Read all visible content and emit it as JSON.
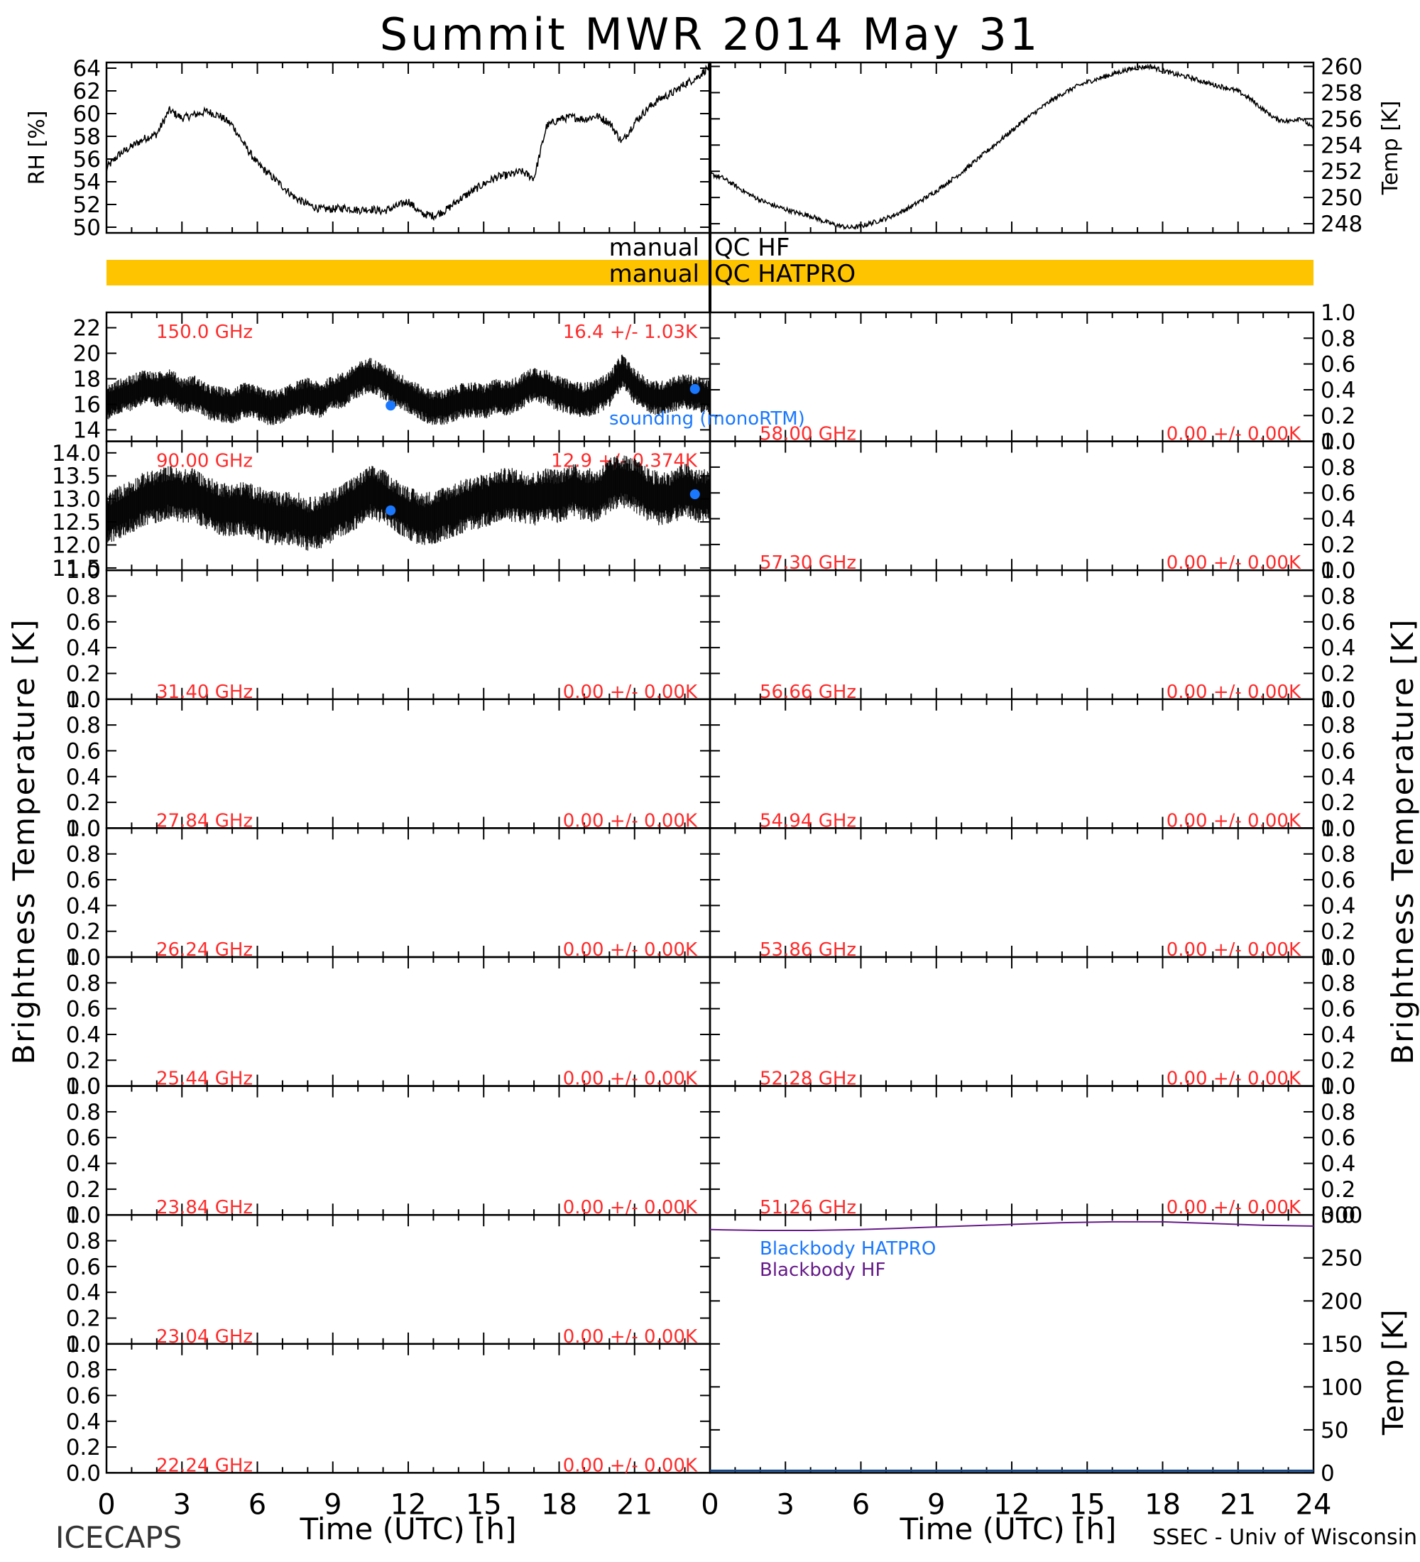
{
  "figure": {
    "title": "Summit MWR 2014 May 31",
    "footer_left": "ICECAPS",
    "footer_right": "SSEC - Univ of Wisconsin",
    "xlabel": "Time (UTC) [h]",
    "left_ylabel": "Brightness Temperature [K]",
    "right_ylabel": "Brightness Temperature [K]",
    "qc": {
      "hf_label": "manual",
      "hf_text": "QC HF",
      "hatpro_label": "manual",
      "hatpro_text": "QC HATPRO",
      "hatpro_color": "#ffc400"
    },
    "colors": {
      "stats": "#ff2a2a",
      "sounding": "#1a78ff",
      "blackbody_hatpro": "#1a78ff",
      "blackbody_hf": "#661a88"
    }
  },
  "chart_data": [
    {
      "id": "rh",
      "type": "line",
      "ylabel": "RH [%]",
      "ylim": [
        49.5,
        64.5
      ],
      "yticks": [
        50,
        52,
        54,
        56,
        58,
        60,
        62,
        64
      ],
      "x": [
        0,
        0.5,
        1,
        1.5,
        2,
        2.5,
        3,
        3.5,
        4,
        4.5,
        5,
        5.5,
        6,
        6.5,
        7,
        7.5,
        8,
        8.5,
        9,
        9.5,
        10,
        10.5,
        11,
        11.5,
        12,
        12.5,
        13,
        13.5,
        14,
        14.5,
        15,
        15.5,
        16,
        16.5,
        17,
        17.5,
        18,
        18.5,
        19,
        19.5,
        20,
        20.5,
        21,
        21.5,
        22,
        22.5,
        23,
        23.5,
        24
      ],
      "y": [
        55.2,
        56.4,
        57.1,
        57.8,
        58.2,
        60.3,
        59.6,
        59.9,
        60.2,
        59.8,
        59.0,
        57.2,
        55.6,
        54.6,
        53.6,
        52.6,
        52.0,
        51.6,
        51.6,
        51.7,
        51.5,
        51.6,
        51.4,
        51.8,
        52.3,
        51.2,
        51.0,
        51.5,
        52.4,
        53.1,
        53.8,
        54.4,
        54.6,
        54.9,
        54.3,
        58.9,
        59.5,
        59.7,
        59.5,
        59.8,
        59.2,
        57.5,
        59.2,
        60.4,
        61.3,
        61.8,
        62.6,
        63.2,
        64.2
      ]
    },
    {
      "id": "temp",
      "type": "line",
      "ylabel": "Temp [K]",
      "ylim": [
        247.3,
        260.3
      ],
      "yticks": [
        248,
        250,
        252,
        254,
        256,
        258,
        260
      ],
      "x": [
        0,
        0.5,
        1,
        1.5,
        2,
        2.5,
        3,
        3.5,
        4,
        4.5,
        5,
        5.5,
        6,
        6.5,
        7,
        7.5,
        8,
        8.5,
        9,
        9.5,
        10,
        10.5,
        11,
        11.5,
        12,
        12.5,
        13,
        13.5,
        14,
        14.5,
        15,
        15.5,
        16,
        16.5,
        17,
        17.5,
        18,
        18.5,
        19,
        19.5,
        20,
        20.5,
        21,
        21.5,
        22,
        22.5,
        23,
        23.5,
        24
      ],
      "y": [
        251.8,
        251.5,
        250.9,
        250.3,
        249.8,
        249.4,
        249.1,
        248.8,
        248.6,
        248.2,
        247.9,
        247.7,
        247.8,
        248.1,
        248.4,
        248.8,
        249.3,
        249.9,
        250.5,
        251.2,
        251.9,
        252.7,
        253.5,
        254.3,
        255.1,
        255.9,
        256.6,
        257.3,
        257.9,
        258.4,
        258.8,
        259.1,
        259.4,
        259.7,
        259.9,
        260.0,
        259.7,
        259.4,
        259.2,
        258.9,
        258.6,
        258.4,
        258.1,
        257.5,
        256.7,
        256.0,
        255.8,
        256.1,
        255.2
      ]
    },
    {
      "id": "tb-150",
      "type": "line",
      "freq_label": "150.0 GHz",
      "stats_label": "16.4 +/- 1.03K",
      "ylim": [
        13.1,
        23.2
      ],
      "yticks": [
        14,
        16,
        18,
        20,
        22
      ],
      "y_decimals": 0,
      "x": [
        0,
        0.5,
        1,
        1.5,
        2,
        2.5,
        3,
        3.5,
        4,
        4.5,
        5,
        5.5,
        6,
        6.5,
        7,
        7.5,
        8,
        8.5,
        9,
        9.5,
        10,
        10.5,
        11,
        11.5,
        12,
        12.5,
        13,
        13.5,
        14,
        14.5,
        15,
        15.5,
        16,
        16.5,
        17,
        17.5,
        18,
        18.5,
        19,
        19.5,
        20,
        20.5,
        21,
        21.5,
        22,
        22.5,
        23,
        23.5,
        24
      ],
      "y": [
        16.1,
        16.6,
        16.9,
        17.4,
        17.1,
        17.5,
        16.7,
        16.9,
        16.2,
        16.0,
        15.9,
        16.3,
        16.1,
        15.7,
        15.9,
        16.4,
        16.7,
        16.3,
        16.9,
        17.2,
        17.9,
        18.3,
        17.8,
        17.2,
        16.7,
        16.1,
        15.7,
        15.8,
        16.2,
        16.4,
        16.2,
        16.6,
        16.5,
        17.0,
        17.6,
        17.3,
        16.8,
        16.5,
        16.3,
        16.6,
        17.2,
        18.6,
        17.4,
        16.7,
        16.4,
        16.8,
        17.0,
        16.8,
        16.5
      ],
      "band": 1.0,
      "sounding": [
        [
          11.3,
          15.9
        ],
        [
          23.4,
          17.2
        ]
      ],
      "sounding_label": "sounding (monoRTM)"
    },
    {
      "id": "tb-90",
      "type": "line",
      "freq_label": "90.00 GHz",
      "stats_label": "12.9 +/- 0.374K",
      "ylim": [
        11.45,
        14.25
      ],
      "yticks": [
        11.5,
        12.0,
        12.5,
        13.0,
        13.5,
        14.0
      ],
      "y_decimals": 1,
      "x": [
        0,
        0.5,
        1,
        1.5,
        2,
        2.5,
        3,
        3.5,
        4,
        4.5,
        5,
        5.5,
        6,
        6.5,
        7,
        7.5,
        8,
        8.5,
        9,
        9.5,
        10,
        10.5,
        11,
        11.5,
        12,
        12.5,
        13,
        13.5,
        14,
        14.5,
        15,
        15.5,
        16,
        16.5,
        17,
        17.5,
        18,
        18.5,
        19,
        19.5,
        20,
        20.5,
        21,
        21.5,
        22,
        22.5,
        23,
        23.5,
        24
      ],
      "y": [
        12.55,
        12.7,
        12.85,
        13.0,
        13.05,
        13.15,
        13.05,
        13.1,
        12.9,
        12.8,
        12.75,
        12.8,
        12.7,
        12.6,
        12.55,
        12.6,
        12.45,
        12.5,
        12.65,
        12.8,
        12.95,
        13.15,
        13.05,
        12.85,
        12.7,
        12.55,
        12.6,
        12.7,
        12.8,
        12.9,
        12.95,
        13.05,
        13.1,
        13.05,
        13.0,
        13.1,
        13.05,
        13.2,
        13.1,
        13.05,
        13.3,
        13.4,
        13.3,
        13.1,
        13.0,
        13.05,
        13.2,
        13.05,
        13.1
      ],
      "band": 0.42,
      "sounding": [
        [
          11.3,
          12.75
        ],
        [
          23.4,
          13.1
        ]
      ]
    },
    {
      "id": "tb-31",
      "type": "line",
      "freq_label": "31.40 GHz",
      "stats_label": "0.00 +/- 0.00K",
      "ylim": [
        0,
        1
      ],
      "yticks": [
        0.0,
        0.2,
        0.4,
        0.6,
        0.8,
        1.0
      ],
      "y_decimals": 1
    },
    {
      "id": "tb-27",
      "type": "line",
      "freq_label": "27.84 GHz",
      "stats_label": "0.00 +/- 0.00K",
      "ylim": [
        0,
        1
      ],
      "yticks": [
        0.0,
        0.2,
        0.4,
        0.6,
        0.8,
        1.0
      ],
      "y_decimals": 1
    },
    {
      "id": "tb-26",
      "type": "line",
      "freq_label": "26.24 GHz",
      "stats_label": "0.00 +/- 0.00K",
      "ylim": [
        0,
        1
      ],
      "yticks": [
        0.0,
        0.2,
        0.4,
        0.6,
        0.8,
        1.0
      ],
      "y_decimals": 1
    },
    {
      "id": "tb-25",
      "type": "line",
      "freq_label": "25.44 GHz",
      "stats_label": "0.00 +/- 0.00K",
      "ylim": [
        0,
        1
      ],
      "yticks": [
        0.0,
        0.2,
        0.4,
        0.6,
        0.8,
        1.0
      ],
      "y_decimals": 1
    },
    {
      "id": "tb-23-84",
      "type": "line",
      "freq_label": "23.84 GHz",
      "stats_label": "0.00 +/- 0.00K",
      "ylim": [
        0,
        1
      ],
      "yticks": [
        0.0,
        0.2,
        0.4,
        0.6,
        0.8,
        1.0
      ],
      "y_decimals": 1
    },
    {
      "id": "tb-23-04",
      "type": "line",
      "freq_label": "23.04 GHz",
      "stats_label": "0.00 +/- 0.00K",
      "ylim": [
        0,
        1
      ],
      "yticks": [
        0.0,
        0.2,
        0.4,
        0.6,
        0.8,
        1.0
      ],
      "y_decimals": 1
    },
    {
      "id": "tb-22",
      "type": "line",
      "freq_label": "22.24 GHz",
      "stats_label": "0.00 +/- 0.00K",
      "ylim": [
        0,
        1
      ],
      "yticks": [
        0.0,
        0.2,
        0.4,
        0.6,
        0.8,
        1.0
      ],
      "y_decimals": 1
    },
    {
      "id": "tb-58",
      "type": "line",
      "freq_label": "58.00 GHz",
      "stats_label": "0.00 +/- 0.00K",
      "ylim": [
        0,
        1
      ],
      "yticks": [
        0.0,
        0.2,
        0.4,
        0.6,
        0.8,
        1.0
      ],
      "y_decimals": 1
    },
    {
      "id": "tb-57",
      "type": "line",
      "freq_label": "57.30 GHz",
      "stats_label": "0.00 +/- 0.00K",
      "ylim": [
        0,
        1
      ],
      "yticks": [
        0.0,
        0.2,
        0.4,
        0.6,
        0.8,
        1.0
      ],
      "y_decimals": 1
    },
    {
      "id": "tb-56",
      "type": "line",
      "freq_label": "56.66 GHz",
      "stats_label": "0.00 +/- 0.00K",
      "ylim": [
        0,
        1
      ],
      "yticks": [
        0.0,
        0.2,
        0.4,
        0.6,
        0.8,
        1.0
      ],
      "y_decimals": 1
    },
    {
      "id": "tb-54",
      "type": "line",
      "freq_label": "54.94 GHz",
      "stats_label": "0.00 +/- 0.00K",
      "ylim": [
        0,
        1
      ],
      "yticks": [
        0.0,
        0.2,
        0.4,
        0.6,
        0.8,
        1.0
      ],
      "y_decimals": 1
    },
    {
      "id": "tb-53",
      "type": "line",
      "freq_label": "53.86 GHz",
      "stats_label": "0.00 +/- 0.00K",
      "ylim": [
        0,
        1
      ],
      "yticks": [
        0.0,
        0.2,
        0.4,
        0.6,
        0.8,
        1.0
      ],
      "y_decimals": 1
    },
    {
      "id": "tb-52",
      "type": "line",
      "freq_label": "52.28 GHz",
      "stats_label": "0.00 +/- 0.00K",
      "ylim": [
        0,
        1
      ],
      "yticks": [
        0.0,
        0.2,
        0.4,
        0.6,
        0.8,
        1.0
      ],
      "y_decimals": 1
    },
    {
      "id": "tb-51",
      "type": "line",
      "freq_label": "51.26 GHz",
      "stats_label": "0.00 +/- 0.00K",
      "ylim": [
        0,
        1
      ],
      "yticks": [
        0.0,
        0.2,
        0.4,
        0.6,
        0.8,
        1.0
      ],
      "y_decimals": 1
    },
    {
      "id": "blackbody",
      "type": "line",
      "ylabel": "Temp [K]",
      "ylim": [
        0,
        300
      ],
      "yticks": [
        0,
        50,
        100,
        150,
        200,
        250,
        300
      ],
      "y_decimals": 0,
      "series": [
        {
          "name": "Blackbody HATPRO",
          "x": [],
          "y": []
        },
        {
          "name": "Blackbody HF",
          "x": [
            0,
            2,
            4,
            6,
            8,
            10,
            12,
            14,
            16,
            18,
            20,
            22,
            24
          ],
          "y": [
            283,
            282,
            282,
            283,
            285,
            287,
            289,
            291,
            292,
            292,
            290,
            288,
            287
          ]
        }
      ]
    }
  ],
  "x_axis": {
    "xlim": [
      0,
      24
    ],
    "left_ticks": [
      0,
      3,
      6,
      9,
      12,
      15,
      18,
      21
    ],
    "right_ticks": [
      0,
      3,
      6,
      9,
      12,
      15,
      18,
      21,
      24
    ]
  }
}
